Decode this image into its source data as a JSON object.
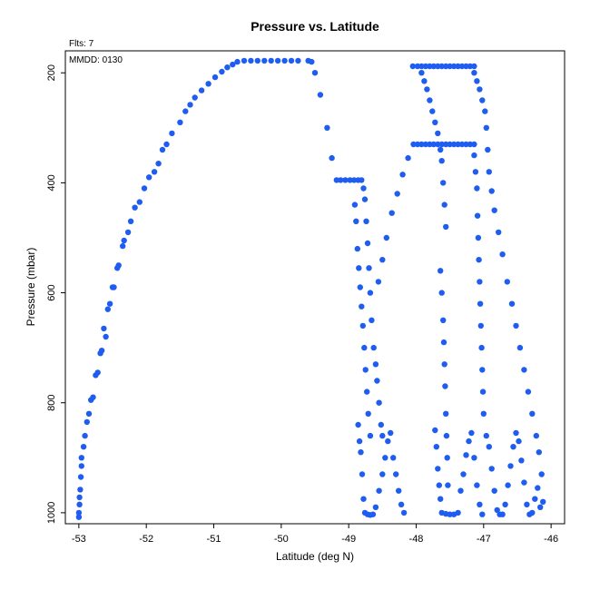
{
  "chart_data": {
    "type": "scatter",
    "title": "Pressure vs. Latitude",
    "annotations": {
      "flts": "Flts: 7",
      "mmdd": "MMDD: 0130"
    },
    "xlabel": "Latitude (deg N)",
    "ylabel": "Pressure (mbar)",
    "xlim": [
      -53.2,
      -45.8
    ],
    "ylim": [
      1020,
      160
    ],
    "y_reversed": true,
    "x_ticks": [
      -53,
      -52,
      -51,
      -50,
      -49,
      -48,
      -47,
      -46
    ],
    "y_ticks": [
      200,
      400,
      600,
      800,
      1000
    ],
    "grid": false,
    "color": "#1f5cf0",
    "points": [
      [
        -53.0,
        1008
      ],
      [
        -53.0,
        1000
      ],
      [
        -52.99,
        985
      ],
      [
        -52.99,
        972
      ],
      [
        -52.98,
        958
      ],
      [
        -52.97,
        935
      ],
      [
        -52.96,
        915
      ],
      [
        -52.96,
        900
      ],
      [
        -52.93,
        880
      ],
      [
        -52.91,
        860
      ],
      [
        -52.88,
        835
      ],
      [
        -52.85,
        820
      ],
      [
        -52.82,
        795
      ],
      [
        -52.79,
        790
      ],
      [
        -52.75,
        750
      ],
      [
        -52.72,
        745
      ],
      [
        -52.68,
        710
      ],
      [
        -52.66,
        705
      ],
      [
        -52.63,
        665
      ],
      [
        -52.6,
        680
      ],
      [
        -52.57,
        630
      ],
      [
        -52.54,
        620
      ],
      [
        -52.5,
        590
      ],
      [
        -52.48,
        590
      ],
      [
        -52.43,
        555
      ],
      [
        -52.41,
        550
      ],
      [
        -52.35,
        515
      ],
      [
        -52.33,
        505
      ],
      [
        -52.27,
        490
      ],
      [
        -52.23,
        470
      ],
      [
        -52.17,
        445
      ],
      [
        -52.1,
        435
      ],
      [
        -52.03,
        410
      ],
      [
        -51.96,
        390
      ],
      [
        -51.88,
        380
      ],
      [
        -51.82,
        365
      ],
      [
        -51.76,
        340
      ],
      [
        -51.7,
        330
      ],
      [
        -51.62,
        310
      ],
      [
        -51.5,
        290
      ],
      [
        -51.42,
        270
      ],
      [
        -51.35,
        258
      ],
      [
        -51.28,
        245
      ],
      [
        -51.18,
        232
      ],
      [
        -51.08,
        220
      ],
      [
        -50.98,
        208
      ],
      [
        -50.88,
        198
      ],
      [
        -50.8,
        190
      ],
      [
        -50.72,
        185
      ],
      [
        -50.65,
        180
      ],
      [
        -50.55,
        178
      ],
      [
        -50.45,
        178
      ],
      [
        -50.35,
        178
      ],
      [
        -50.25,
        178
      ],
      [
        -50.15,
        178
      ],
      [
        -50.05,
        178
      ],
      [
        -49.95,
        178
      ],
      [
        -49.85,
        178
      ],
      [
        -49.75,
        178
      ],
      [
        -49.6,
        178
      ],
      [
        -49.55,
        180
      ],
      [
        -49.5,
        200
      ],
      [
        -49.42,
        240
      ],
      [
        -49.32,
        300
      ],
      [
        -49.25,
        355
      ],
      [
        -49.18,
        395
      ],
      [
        -49.12,
        395
      ],
      [
        -49.05,
        395
      ],
      [
        -48.98,
        395
      ],
      [
        -48.92,
        395
      ],
      [
        -48.86,
        395
      ],
      [
        -48.81,
        395
      ],
      [
        -48.78,
        410
      ],
      [
        -48.76,
        430
      ],
      [
        -48.74,
        470
      ],
      [
        -48.72,
        510
      ],
      [
        -48.7,
        555
      ],
      [
        -48.68,
        600
      ],
      [
        -48.66,
        650
      ],
      [
        -48.63,
        700
      ],
      [
        -48.6,
        730
      ],
      [
        -48.58,
        760
      ],
      [
        -48.55,
        800
      ],
      [
        -48.52,
        840
      ],
      [
        -48.5,
        860
      ],
      [
        -48.91,
        440
      ],
      [
        -48.89,
        470
      ],
      [
        -48.87,
        520
      ],
      [
        -48.85,
        555
      ],
      [
        -48.83,
        590
      ],
      [
        -48.81,
        625
      ],
      [
        -48.79,
        660
      ],
      [
        -48.77,
        700
      ],
      [
        -48.75,
        740
      ],
      [
        -48.73,
        780
      ],
      [
        -48.71,
        820
      ],
      [
        -48.68,
        860
      ],
      [
        -48.86,
        840
      ],
      [
        -48.84,
        870
      ],
      [
        -48.82,
        890
      ],
      [
        -48.8,
        930
      ],
      [
        -48.78,
        975
      ],
      [
        -48.76,
        1000
      ],
      [
        -48.72,
        1003
      ],
      [
        -48.68,
        1004
      ],
      [
        -48.64,
        1003
      ],
      [
        -48.6,
        990
      ],
      [
        -48.55,
        960
      ],
      [
        -48.5,
        930
      ],
      [
        -48.46,
        900
      ],
      [
        -48.42,
        870
      ],
      [
        -48.38,
        855
      ],
      [
        -48.34,
        900
      ],
      [
        -48.3,
        930
      ],
      [
        -48.26,
        960
      ],
      [
        -48.22,
        985
      ],
      [
        -48.18,
        1000
      ],
      [
        -48.56,
        580
      ],
      [
        -48.5,
        540
      ],
      [
        -48.44,
        500
      ],
      [
        -48.36,
        455
      ],
      [
        -48.28,
        420
      ],
      [
        -48.2,
        385
      ],
      [
        -48.12,
        355
      ],
      [
        -48.04,
        330
      ],
      [
        -47.98,
        330
      ],
      [
        -47.92,
        330
      ],
      [
        -47.86,
        330
      ],
      [
        -47.8,
        330
      ],
      [
        -47.74,
        330
      ],
      [
        -47.68,
        330
      ],
      [
        -47.62,
        330
      ],
      [
        -47.56,
        330
      ],
      [
        -47.5,
        330
      ],
      [
        -47.44,
        330
      ],
      [
        -47.38,
        330
      ],
      [
        -47.32,
        330
      ],
      [
        -47.26,
        330
      ],
      [
        -47.2,
        330
      ],
      [
        -47.14,
        330
      ],
      [
        -48.05,
        188
      ],
      [
        -47.98,
        188
      ],
      [
        -47.92,
        188
      ],
      [
        -47.86,
        188
      ],
      [
        -47.8,
        188
      ],
      [
        -47.74,
        188
      ],
      [
        -47.68,
        188
      ],
      [
        -47.62,
        188
      ],
      [
        -47.56,
        188
      ],
      [
        -47.5,
        188
      ],
      [
        -47.44,
        188
      ],
      [
        -47.38,
        188
      ],
      [
        -47.32,
        188
      ],
      [
        -47.26,
        188
      ],
      [
        -47.2,
        188
      ],
      [
        -47.14,
        188
      ],
      [
        -47.92,
        200
      ],
      [
        -47.88,
        215
      ],
      [
        -47.84,
        230
      ],
      [
        -47.8,
        250
      ],
      [
        -47.76,
        270
      ],
      [
        -47.72,
        290
      ],
      [
        -47.68,
        310
      ],
      [
        -47.64,
        340
      ],
      [
        -47.62,
        360
      ],
      [
        -47.6,
        400
      ],
      [
        -47.58,
        440
      ],
      [
        -47.56,
        480
      ],
      [
        -47.14,
        200
      ],
      [
        -47.1,
        215
      ],
      [
        -47.06,
        230
      ],
      [
        -47.02,
        250
      ],
      [
        -46.98,
        270
      ],
      [
        -46.96,
        300
      ],
      [
        -46.94,
        340
      ],
      [
        -46.92,
        380
      ],
      [
        -46.88,
        415
      ],
      [
        -46.84,
        450
      ],
      [
        -46.78,
        490
      ],
      [
        -46.72,
        530
      ],
      [
        -46.65,
        580
      ],
      [
        -46.58,
        620
      ],
      [
        -46.52,
        660
      ],
      [
        -46.46,
        700
      ],
      [
        -46.4,
        740
      ],
      [
        -46.34,
        780
      ],
      [
        -46.28,
        820
      ],
      [
        -46.22,
        860
      ],
      [
        -46.18,
        890
      ],
      [
        -46.14,
        930
      ],
      [
        -47.14,
        350
      ],
      [
        -47.12,
        380
      ],
      [
        -47.1,
        410
      ],
      [
        -47.09,
        460
      ],
      [
        -47.08,
        500
      ],
      [
        -47.07,
        540
      ],
      [
        -47.06,
        580
      ],
      [
        -47.05,
        620
      ],
      [
        -47.04,
        660
      ],
      [
        -47.03,
        700
      ],
      [
        -47.02,
        740
      ],
      [
        -47.01,
        780
      ],
      [
        -47.0,
        820
      ],
      [
        -47.64,
        560
      ],
      [
        -47.62,
        600
      ],
      [
        -47.6,
        650
      ],
      [
        -47.59,
        690
      ],
      [
        -47.58,
        730
      ],
      [
        -47.57,
        770
      ],
      [
        -47.56,
        820
      ],
      [
        -47.55,
        860
      ],
      [
        -47.54,
        900
      ],
      [
        -47.53,
        950
      ],
      [
        -47.72,
        850
      ],
      [
        -47.7,
        880
      ],
      [
        -47.68,
        920
      ],
      [
        -47.66,
        950
      ],
      [
        -47.64,
        975
      ],
      [
        -47.62,
        1000
      ],
      [
        -47.56,
        1002
      ],
      [
        -47.5,
        1003
      ],
      [
        -47.44,
        1003
      ],
      [
        -47.38,
        1000
      ],
      [
        -47.34,
        960
      ],
      [
        -47.3,
        930
      ],
      [
        -47.26,
        895
      ],
      [
        -47.22,
        870
      ],
      [
        -47.18,
        855
      ],
      [
        -47.14,
        900
      ],
      [
        -47.1,
        950
      ],
      [
        -47.06,
        985
      ],
      [
        -47.02,
        1003
      ],
      [
        -46.96,
        860
      ],
      [
        -46.92,
        880
      ],
      [
        -46.88,
        920
      ],
      [
        -46.84,
        960
      ],
      [
        -46.8,
        995
      ],
      [
        -46.76,
        1003
      ],
      [
        -46.72,
        1003
      ],
      [
        -46.68,
        985
      ],
      [
        -46.64,
        950
      ],
      [
        -46.6,
        915
      ],
      [
        -46.56,
        880
      ],
      [
        -46.52,
        855
      ],
      [
        -46.48,
        870
      ],
      [
        -46.44,
        905
      ],
      [
        -46.4,
        945
      ],
      [
        -46.36,
        985
      ],
      [
        -46.32,
        1003
      ],
      [
        -46.28,
        1000
      ],
      [
        -46.24,
        975
      ],
      [
        -46.2,
        955
      ],
      [
        -46.16,
        990
      ],
      [
        -46.12,
        980
      ]
    ]
  }
}
